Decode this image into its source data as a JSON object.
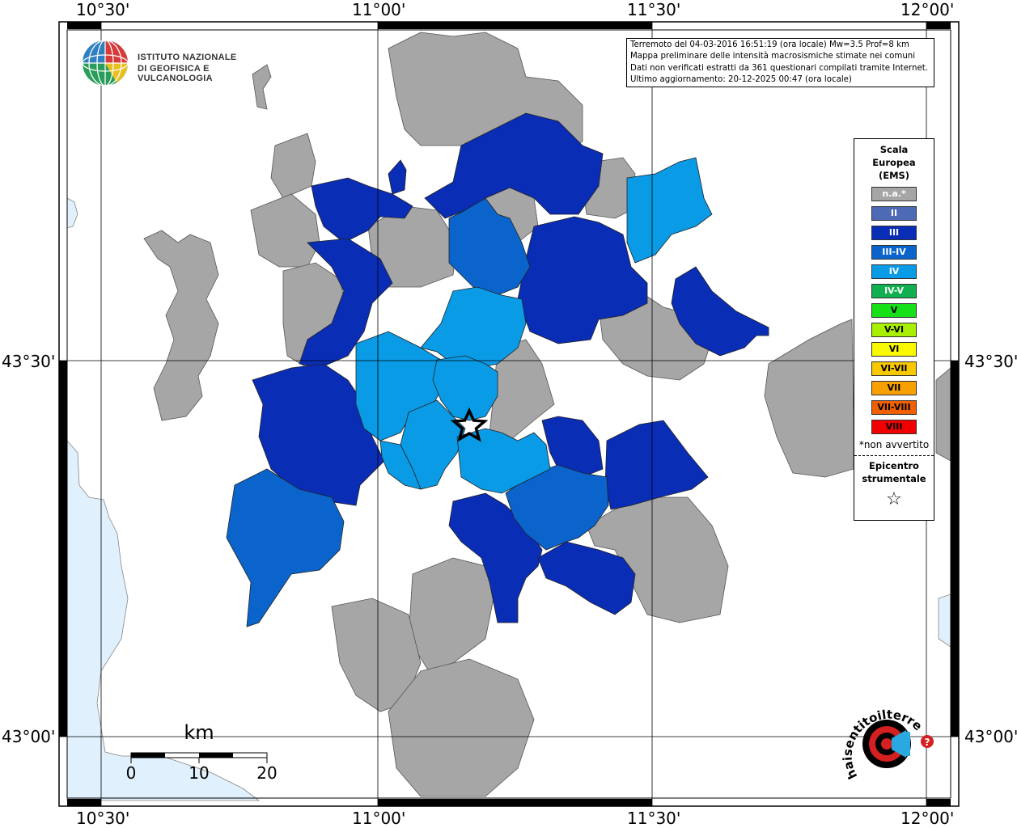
{
  "coordinates": {
    "top_lon": [
      "10°30'",
      "11°00'",
      "11°30'",
      "12°00'"
    ],
    "bottom_lon": [
      "10°30'",
      "11°00'",
      "11°30'",
      "12°00'"
    ],
    "left_lat": [
      "43°30'",
      "43°00'"
    ],
    "right_lat": [
      "43°30'",
      "43°00'"
    ]
  },
  "info": {
    "line1": "Terremoto del 04-03-2016 16:51:19 (ora locale) Mw=3.5 Prof=8 km",
    "line2": "Mappa preliminare delle intensità macrosismiche stimate nei comuni",
    "line3": "Dati non verificati estratti da 361 questionari compilati tramite Internet.",
    "line4": "Ultimo aggiornamento: 20-12-2025 00:47 (ora locale)"
  },
  "logo": {
    "line1": "ISTITUTO NAZIONALE",
    "line2": "DI GEOFISICA E VULCANOLOGIA"
  },
  "legend": {
    "title1": "Scala",
    "title2": "Europea",
    "title3": "(EMS)",
    "items": [
      {
        "label": "n.a.*",
        "color": "#a6a6a6",
        "text": "#ffffff"
      },
      {
        "label": "II",
        "color": "#4d6ab5",
        "text": "#ffffff"
      },
      {
        "label": "III",
        "color": "#0a2db5",
        "text": "#ffffff"
      },
      {
        "label": "III-IV",
        "color": "#0a64cc",
        "text": "#ffffff"
      },
      {
        "label": "IV",
        "color": "#0a9be6",
        "text": "#ffffff"
      },
      {
        "label": "IV-V",
        "color": "#10b050",
        "text": "#ffffff"
      },
      {
        "label": "V",
        "color": "#18e018",
        "text": "#000000"
      },
      {
        "label": "V-VI",
        "color": "#a8f000",
        "text": "#000000"
      },
      {
        "label": "VI",
        "color": "#f8f800",
        "text": "#000000"
      },
      {
        "label": "VI-VII",
        "color": "#f8c800",
        "text": "#000000"
      },
      {
        "label": "VII",
        "color": "#f8a000",
        "text": "#000000"
      },
      {
        "label": "VII-VIII",
        "color": "#f06000",
        "text": "#000000"
      },
      {
        "label": "VIII",
        "color": "#f00000",
        "text": "#000000"
      }
    ],
    "note": "*non avvertito",
    "epi1": "Epicentro",
    "epi2": "strumentale"
  },
  "scalebar": {
    "unit": "km",
    "labels": [
      "0",
      "10",
      "20"
    ]
  },
  "hsit": {
    "arc_text": "haisentitoilterremoto.it",
    "www": "www."
  },
  "colors": {
    "sea": "#e0f0fc",
    "na": "#a6a6a6",
    "iii": "#0a2db5",
    "iii_iv": "#0a64cc",
    "iv": "#0a9be6"
  }
}
